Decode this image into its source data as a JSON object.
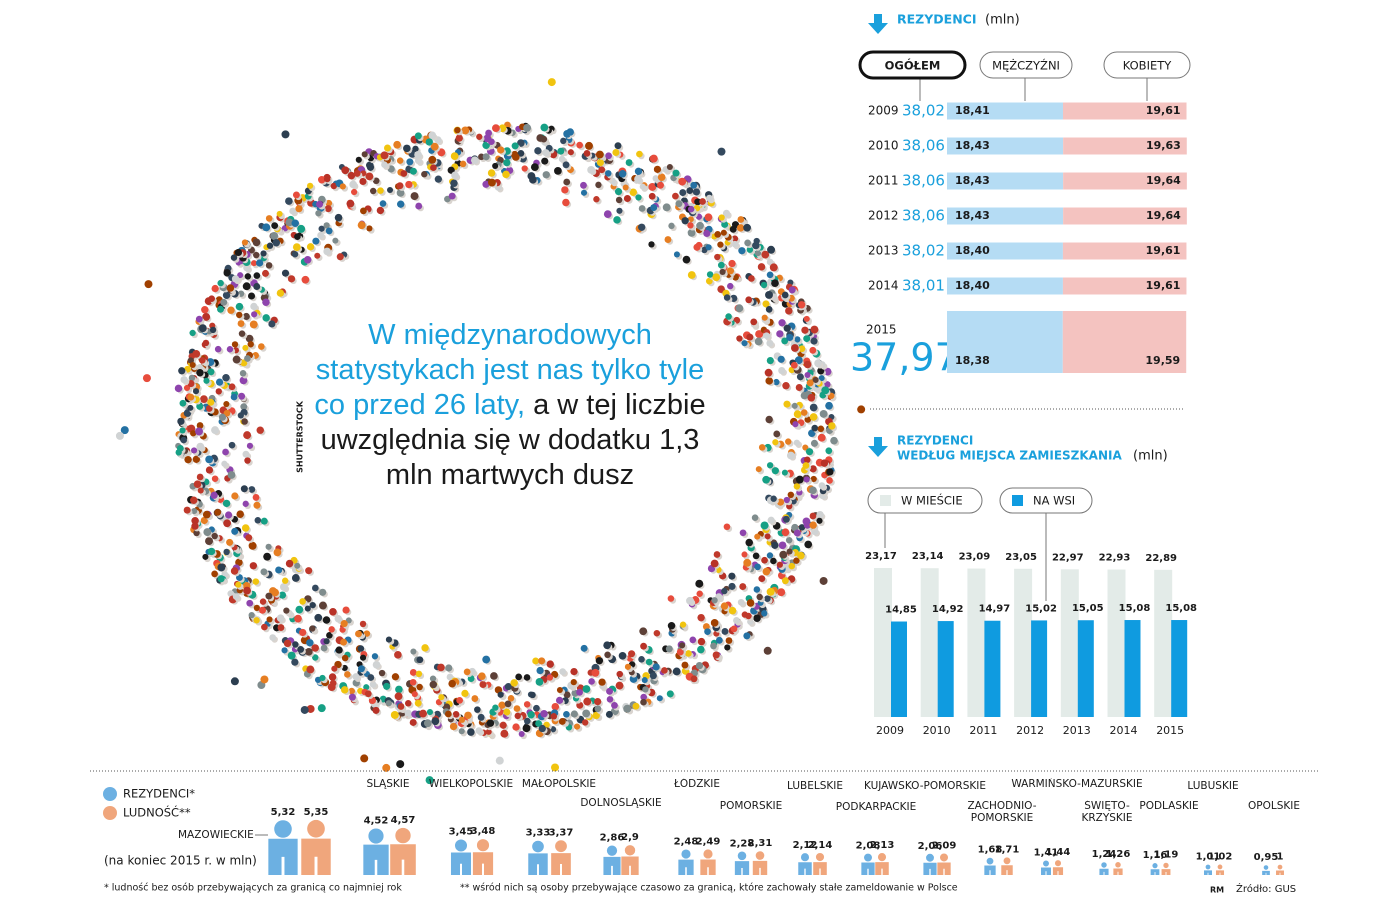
{
  "quote": {
    "highlight": "W międzynarodowych statystykach jest nas tylko tyle co przed 26 laty,",
    "text": "a w tej liczbie uwzględnia się w dodatku 1,3 mln martwych dusz"
  },
  "photo_credit": "SHUTTERSTOCK",
  "chart_data": [
    {
      "type": "bar",
      "orientation": "horizontal",
      "stacked": true,
      "title": "REZYDENCI",
      "unit": "(mln)",
      "categories": [
        "2009",
        "2010",
        "2011",
        "2012",
        "2013",
        "2014",
        "2015"
      ],
      "total": {
        "name": "OGÓŁEM",
        "values": [
          38.02,
          38.06,
          38.06,
          38.06,
          38.02,
          38.01,
          37.97
        ],
        "value_labels": [
          "38,02",
          "38,06",
          "38,06",
          "38,06",
          "38,02",
          "38,01",
          "37,97"
        ]
      },
      "series": [
        {
          "name": "MĘŻCZYŹNI",
          "color": "#b5dcf4",
          "values": [
            18.41,
            18.43,
            18.43,
            18.43,
            18.4,
            18.4,
            18.38
          ],
          "value_labels": [
            "18,41",
            "18,43",
            "18,43",
            "18,43",
            "18,40",
            "18,40",
            "18,38"
          ]
        },
        {
          "name": "KOBIETY",
          "color": "#f4c3c0",
          "values": [
            19.61,
            19.63,
            19.64,
            19.64,
            19.61,
            19.61,
            19.59
          ],
          "value_labels": [
            "19,61",
            "19,63",
            "19,64",
            "19,64",
            "19,61",
            "19,61",
            "19,59"
          ]
        }
      ]
    },
    {
      "type": "bar",
      "orientation": "vertical",
      "title": "REZYDENCI",
      "subtitle": "WEDŁUG MIEJSCA ZAMIESZKANIA",
      "unit": "(mln)",
      "categories": [
        "2009",
        "2010",
        "2011",
        "2012",
        "2013",
        "2014",
        "2015"
      ],
      "series": [
        {
          "name": "W MIEŚCIE",
          "color": "#e3ebe8",
          "values": [
            23.17,
            23.14,
            23.09,
            23.05,
            22.97,
            22.93,
            22.89
          ],
          "value_labels": [
            "23,17",
            "23,14",
            "23,09",
            "23,05",
            "22,97",
            "22,93",
            "22,89"
          ]
        },
        {
          "name": "NA WSI",
          "color": "#0f9be0",
          "values": [
            14.85,
            14.92,
            14.97,
            15.02,
            15.05,
            15.08,
            15.08
          ],
          "value_labels": [
            "14,85",
            "14,92",
            "14,97",
            "15,02",
            "15,05",
            "15,08",
            "15,08"
          ]
        }
      ]
    },
    {
      "type": "pictogram",
      "note": "(na koniec 2015 r. w mln)",
      "categories": [
        "MAZOWIECKIE",
        "ŚLĄSKIE",
        "WIELKOPOLSKIE",
        "MAŁOPOLSKIE",
        "DOLNOŚLĄSKIE",
        "ŁÓDZKIE",
        "POMORSKIE",
        "LUBELSKIE",
        "PODKARPACKIE",
        "KUJAWSKO-POMORSKIE",
        "ZACHODNIO-POMORSKIE",
        "WARMIŃSKO-MAZURSKIE",
        "ŚWIĘTO-KRZYSKIE",
        "PODLASKIE",
        "LUBUSKIE",
        "OPOLSKIE"
      ],
      "series": [
        {
          "name": "REZYDENCI*",
          "color": "#6cb0e2",
          "values": [
            5.32,
            4.52,
            3.45,
            3.33,
            2.86,
            2.48,
            2.28,
            2.12,
            2.08,
            2.06,
            1.68,
            1.41,
            1.24,
            1.16,
            1.01,
            0.95
          ],
          "value_labels": [
            "5,32",
            "4,52",
            "3,45",
            "3,33",
            "2,86",
            "2,48",
            "2,28",
            "2,12",
            "2,08",
            "2,06",
            "1,68",
            "1,41",
            "1,24",
            "1,16",
            "1,01",
            "0,95"
          ]
        },
        {
          "name": "LUDNOŚĆ**",
          "color": "#f0a67c",
          "values": [
            5.35,
            4.57,
            3.48,
            3.37,
            2.9,
            2.49,
            2.31,
            2.14,
            2.13,
            2.09,
            1.71,
            1.44,
            1.26,
            1.19,
            1.02,
            1
          ],
          "value_labels": [
            "5,35",
            "4,57",
            "3,48",
            "3,37",
            "2,9",
            "2,49",
            "2,31",
            "2,14",
            "2,13",
            "2,09",
            "1,71",
            "1,44",
            "1,26",
            "1,19",
            "1,02",
            "1"
          ]
        }
      ],
      "footnotes": [
        "* ludność bez osób przebywających za granicą co najmniej rok",
        "** wśród nich są osoby przebywające czasowo za granicą, które zachowały stałe zameldowanie w Polsce"
      ],
      "author": "RM",
      "source": "Źródło: GUS"
    }
  ]
}
